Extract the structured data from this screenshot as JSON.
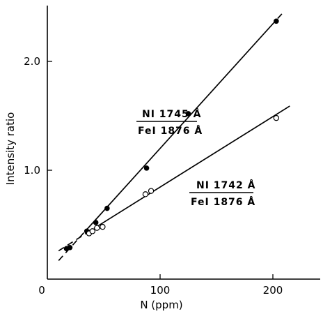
{
  "chart_data": {
    "type": "scatter",
    "xlabel": "N (ppm)",
    "ylabel": "Intensity ratio",
    "xlim": [
      0,
      240
    ],
    "ylim": [
      0,
      2.5
    ],
    "x_ticks": [
      0,
      100,
      200
    ],
    "y_ticks": [
      1.0,
      2.0
    ],
    "x_tick_labels": [
      "0",
      "100",
      "200"
    ],
    "y_tick_labels": [
      "1.0",
      "2.0"
    ],
    "grid": false,
    "series": [
      {
        "marker": "filled-circle",
        "label_numerator": "NI 1745 Å",
        "label_denominator": "FeI 1876 Å",
        "x": [
          17,
          20,
          35,
          37,
          43,
          53,
          88,
          125,
          203
        ],
        "y": [
          0.28,
          0.29,
          0.44,
          0.43,
          0.52,
          0.65,
          1.02,
          1.52,
          2.37
        ],
        "fit": {
          "x": [
            17,
            210
          ],
          "y": [
            0.25,
            2.46
          ],
          "extended_x": [
            10,
            210
          ],
          "extended_y": [
            0.17,
            2.46
          ]
        }
      },
      {
        "marker": "open-circle",
        "label_numerator": "NI 1742 Å",
        "label_denominator": "FeI 1876 Å",
        "x": [
          37,
          40,
          44,
          49,
          87,
          92,
          203
        ],
        "y": [
          0.42,
          0.44,
          0.47,
          0.48,
          0.78,
          0.81,
          1.48
        ],
        "fit": {
          "x": [
            25,
            215
          ],
          "y": [
            0.36,
            1.59
          ],
          "extended_x": [
            10,
            215
          ],
          "extended_y": [
            0.26,
            1.59
          ]
        }
      }
    ]
  }
}
